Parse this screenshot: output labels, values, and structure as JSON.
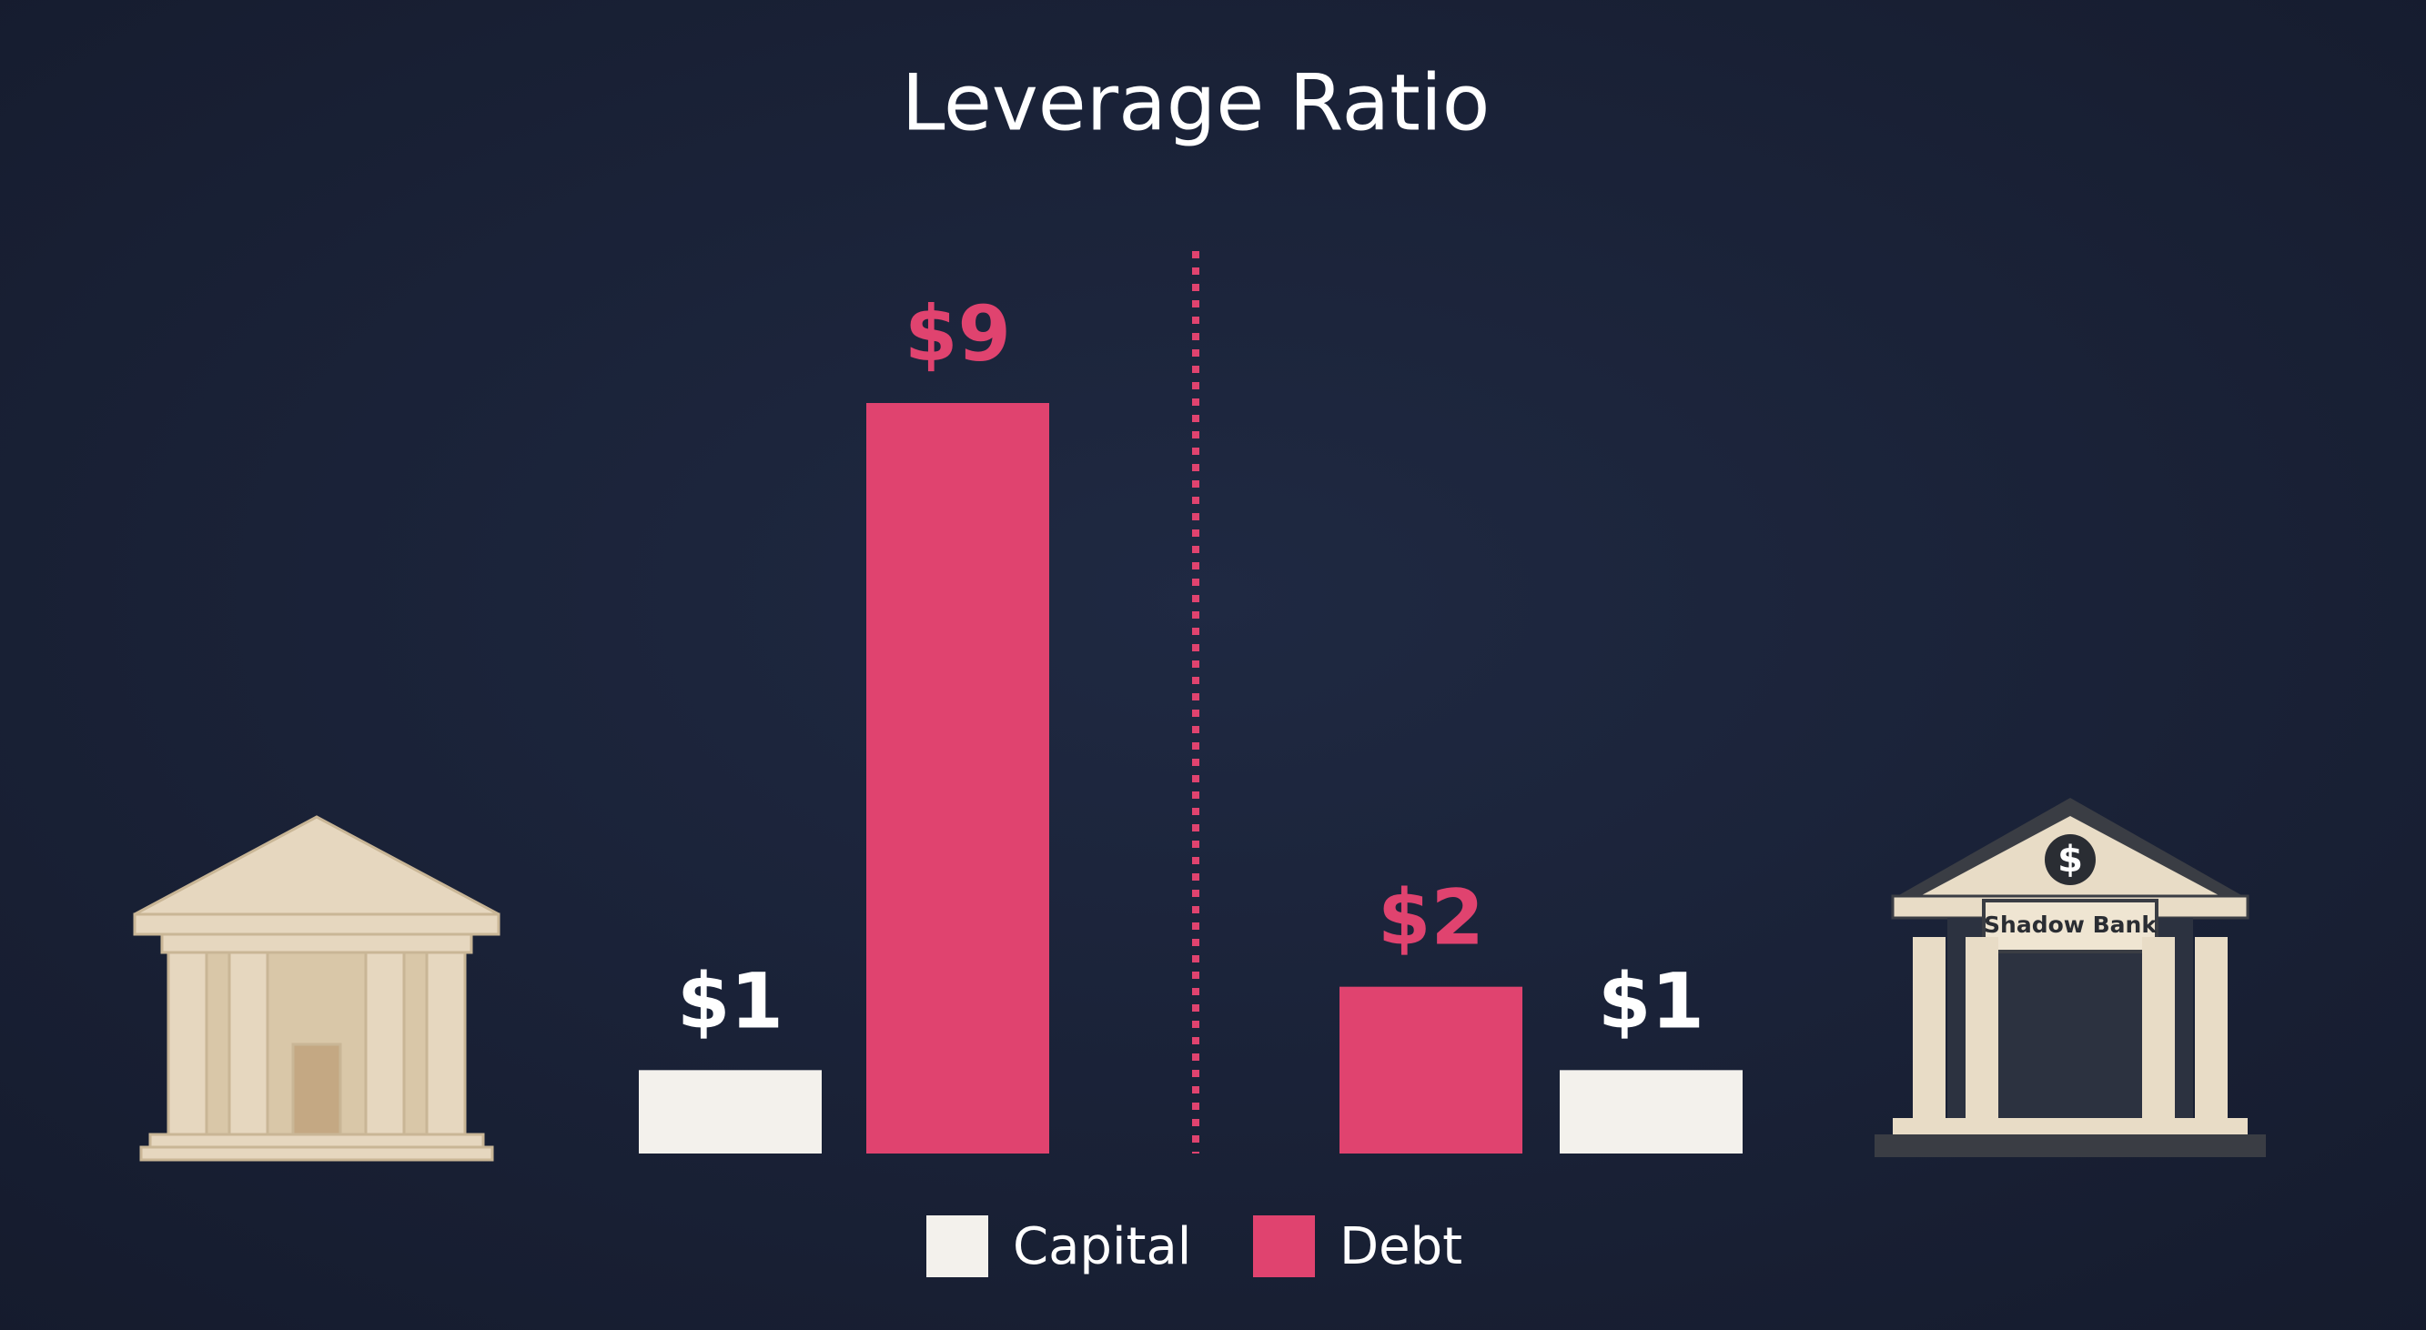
{
  "chart_data": {
    "type": "bar",
    "title": "Leverage Ratio",
    "categories": [
      null,
      "Shadow Bank"
    ],
    "series": [
      {
        "name": "Capital",
        "color": "#f3f1ec",
        "values": [
          1,
          1
        ],
        "value_labels": [
          "$1",
          "$1"
        ]
      },
      {
        "name": "Debt",
        "color": "#e0436f",
        "values": [
          9,
          2
        ],
        "value_labels": [
          "$9",
          "$2"
        ]
      }
    ]
  }
}
